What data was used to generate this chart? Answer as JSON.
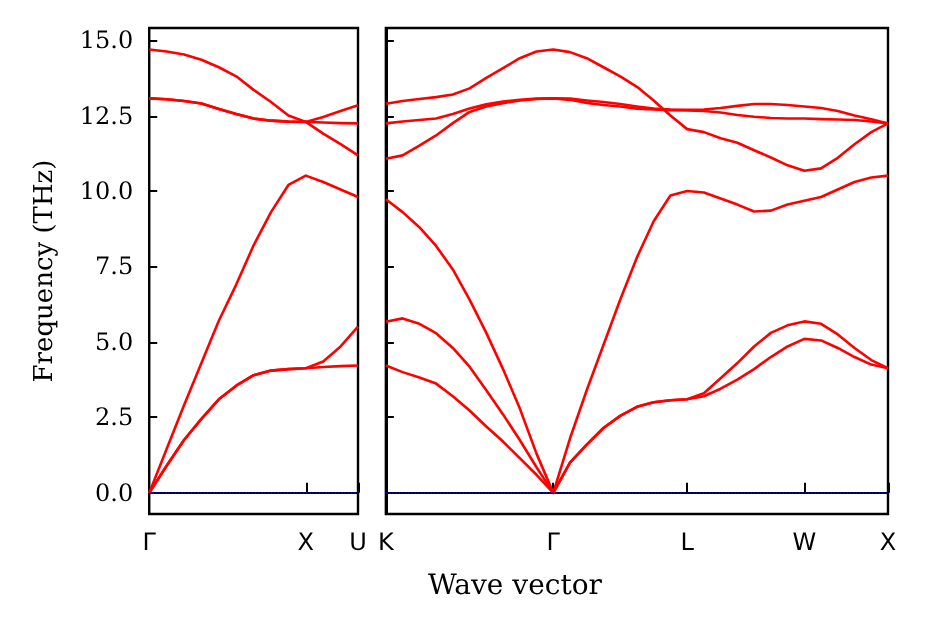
{
  "chart_data": [
    {
      "type": "line",
      "ylabel": "Frequency (THz)",
      "marker": "none",
      "line_style": "solid",
      "grid": false,
      "categories": [
        "Γ",
        null,
        null,
        null,
        null,
        null,
        null,
        null,
        null,
        "X",
        null,
        null,
        "U"
      ],
      "ylim": [
        -0.7,
        15.4
      ],
      "yticks": [
        {
          "value": 0,
          "label": "0.0"
        },
        {
          "value": 2.5,
          "label": "2.5"
        },
        {
          "value": 5,
          "label": "5.0"
        },
        {
          "value": 7.5,
          "label": "7.5"
        },
        {
          "value": 10,
          "label": "10.0"
        },
        {
          "value": 12.5,
          "label": "12.5"
        },
        {
          "value": 15,
          "label": "15.0"
        }
      ],
      "ref_lines": [
        {
          "axis": "y",
          "value": 0,
          "color": "#0000ff",
          "line_style": "dotted"
        }
      ],
      "series": [
        {
          "color": "#ff0000",
          "values": [
            0,
            0.9,
            1.75,
            2.45,
            3.1,
            3.55,
            3.9,
            4.05,
            4.1,
            4.13,
            4.17,
            4.2,
            4.22
          ]
        },
        {
          "color": "#ff0000",
          "values": [
            0,
            0.9,
            1.75,
            2.45,
            3.1,
            3.55,
            3.9,
            4.05,
            4.1,
            4.13,
            4.35,
            4.85,
            5.51
          ]
        },
        {
          "color": "#ff0000",
          "values": [
            0,
            1.45,
            2.9,
            4.3,
            5.7,
            6.9,
            8.2,
            9.3,
            10.2,
            10.51,
            10.3,
            10.05,
            9.8
          ]
        },
        {
          "color": "#ff0000",
          "values": [
            13.07,
            13.04,
            12.98,
            12.9,
            12.72,
            12.55,
            12.4,
            12.33,
            12.3,
            12.29,
            12.45,
            12.65,
            12.84
          ]
        },
        {
          "color": "#ff0000",
          "values": [
            13.07,
            13.04,
            12.98,
            12.9,
            12.72,
            12.55,
            12.4,
            12.33,
            12.3,
            12.29,
            12.27,
            12.25,
            12.24
          ]
        },
        {
          "color": "#ff0000",
          "values": [
            14.69,
            14.62,
            14.52,
            14.35,
            14.1,
            13.8,
            13.35,
            12.95,
            12.5,
            12.29,
            11.9,
            11.55,
            11.18
          ]
        }
      ]
    },
    {
      "type": "line",
      "xlabel": "Wave vector",
      "marker": "none",
      "line_style": "solid",
      "grid": false,
      "tick_labels": "x",
      "categories": [
        "K",
        null,
        null,
        null,
        null,
        null,
        null,
        null,
        null,
        null,
        "Γ",
        null,
        null,
        null,
        null,
        null,
        null,
        null,
        "L",
        null,
        null,
        null,
        null,
        null,
        null,
        "W",
        null,
        null,
        null,
        null,
        "X"
      ],
      "ylim": [
        -0.7,
        15.4
      ],
      "yticks": [
        {
          "value": 0,
          "label": null
        },
        {
          "value": 2.5,
          "label": null
        },
        {
          "value": 5,
          "label": null
        },
        {
          "value": 7.5,
          "label": null
        },
        {
          "value": 10,
          "label": null
        },
        {
          "value": 12.5,
          "label": null
        },
        {
          "value": 15,
          "label": null
        }
      ],
      "ref_lines": [
        {
          "axis": "y",
          "value": 0,
          "color": "#0000ff",
          "line_style": "dotted"
        }
      ],
      "series": [
        {
          "color": "#ff0000",
          "values": [
            4.22,
            4.0,
            3.82,
            3.62,
            3.2,
            2.73,
            2.2,
            1.7,
            1.15,
            0.6,
            0,
            1.0,
            1.6,
            2.15,
            2.55,
            2.85,
            3.0,
            3.07,
            3.1,
            3.2,
            3.45,
            3.75,
            4.1,
            4.5,
            4.85,
            5.1,
            5.05,
            4.8,
            4.5,
            4.25,
            4.13
          ]
        },
        {
          "color": "#ff0000",
          "values": [
            5.67,
            5.78,
            5.6,
            5.29,
            4.8,
            4.18,
            3.4,
            2.6,
            1.75,
            0.85,
            0,
            1.0,
            1.6,
            2.15,
            2.55,
            2.85,
            3.0,
            3.07,
            3.1,
            3.3,
            3.8,
            4.3,
            4.85,
            5.3,
            5.55,
            5.68,
            5.6,
            5.25,
            4.8,
            4.4,
            4.13
          ]
        },
        {
          "color": "#ff0000",
          "values": [
            9.73,
            9.3,
            8.8,
            8.18,
            7.4,
            6.4,
            5.3,
            4.1,
            2.8,
            1.3,
            0,
            1.8,
            3.4,
            4.9,
            6.4,
            7.8,
            9.0,
            9.85,
            10.0,
            9.95,
            9.75,
            9.55,
            9.32,
            9.35,
            9.55,
            9.68,
            9.8,
            10.05,
            10.3,
            10.45,
            10.51
          ]
        },
        {
          "color": "#ff0000",
          "values": [
            11.07,
            11.18,
            11.5,
            11.84,
            12.25,
            12.62,
            12.8,
            12.91,
            13.0,
            13.05,
            13.07,
            13.02,
            12.92,
            12.85,
            12.8,
            12.73,
            12.7,
            12.68,
            12.67,
            12.65,
            12.6,
            12.52,
            12.46,
            12.42,
            12.4,
            12.4,
            12.38,
            12.37,
            12.35,
            12.3,
            12.24
          ]
        },
        {
          "color": "#ff0000",
          "values": [
            12.24,
            12.3,
            12.35,
            12.4,
            12.55,
            12.73,
            12.87,
            12.96,
            13.02,
            13.06,
            13.07,
            13.06,
            13.0,
            12.95,
            12.88,
            12.8,
            12.73,
            12.7,
            12.69,
            12.7,
            12.75,
            12.82,
            12.88,
            12.88,
            12.85,
            12.8,
            12.75,
            12.65,
            12.5,
            12.38,
            12.24
          ]
        },
        {
          "color": "#ff0000",
          "values": [
            12.89,
            12.98,
            13.05,
            13.11,
            13.2,
            13.4,
            13.75,
            14.07,
            14.4,
            14.62,
            14.69,
            14.6,
            14.4,
            14.1,
            13.8,
            13.45,
            13.0,
            12.5,
            12.05,
            11.95,
            11.75,
            11.6,
            11.35,
            11.11,
            10.85,
            10.67,
            10.75,
            11.1,
            11.55,
            11.95,
            12.24
          ]
        }
      ]
    }
  ]
}
